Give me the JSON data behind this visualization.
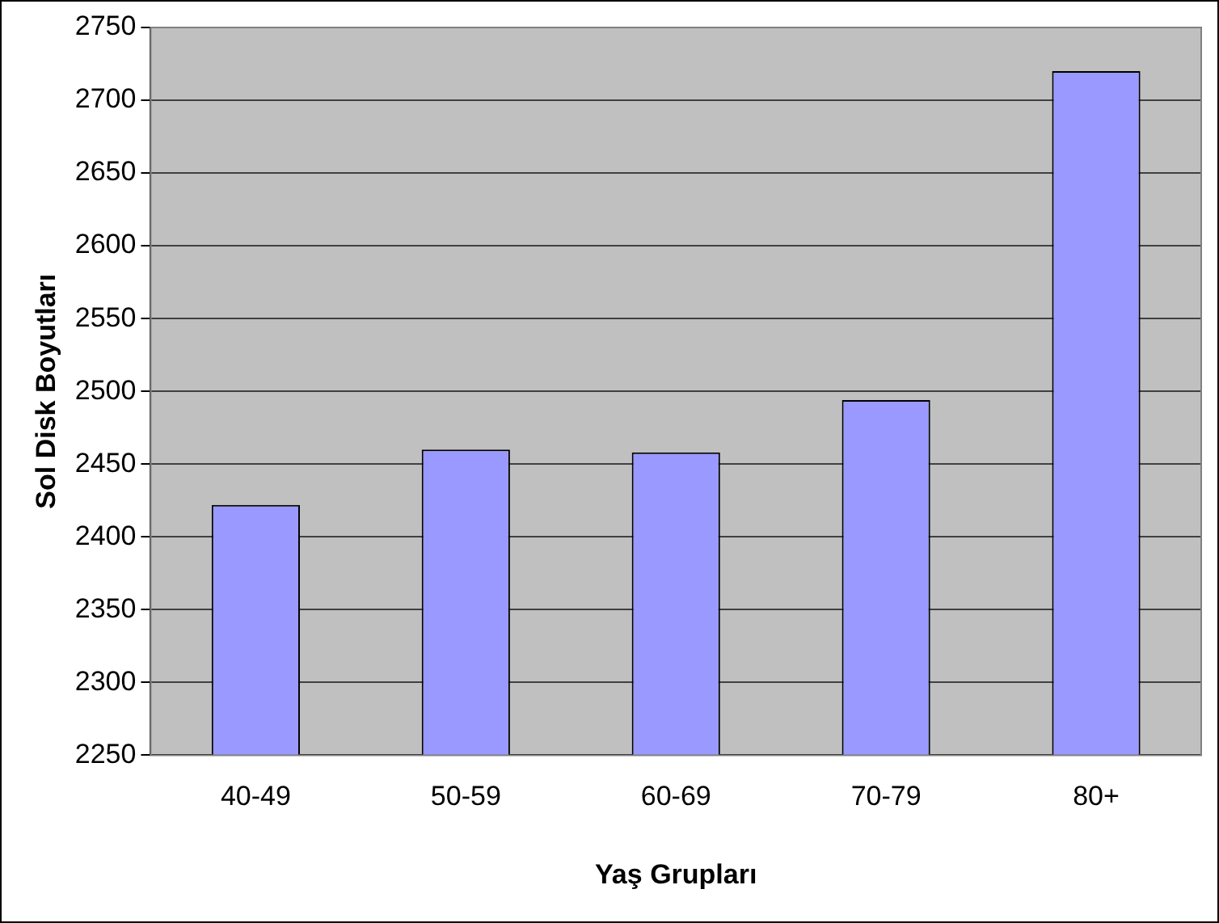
{
  "chart_data": {
    "type": "bar",
    "xlabel": "Yaş Grupları",
    "ylabel": "Sol Disk Boyutları",
    "categories": [
      "40-49",
      "50-59",
      "60-69",
      "70-79",
      "80+"
    ],
    "values": [
      2422,
      2460,
      2458,
      2494,
      2720
    ],
    "color": "#9999ff",
    "ylim": [
      2250,
      2750
    ],
    "yticks": [
      2250,
      2300,
      2350,
      2400,
      2450,
      2500,
      2550,
      2600,
      2650,
      2700,
      2750
    ],
    "grid": "y"
  }
}
